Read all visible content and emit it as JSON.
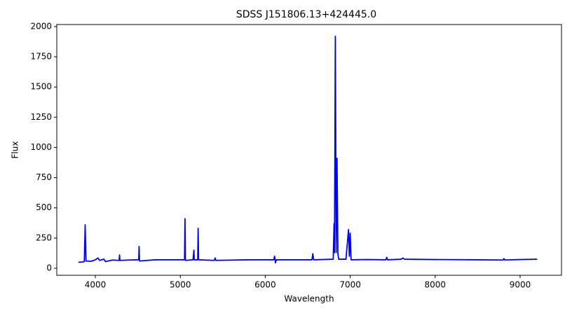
{
  "chart_data": {
    "type": "line",
    "title": "SDSS J151806.13+424445.0",
    "x_label": "Wavelength",
    "y_label": "Flux",
    "x": [
      3800,
      3850,
      3870,
      3880,
      3890,
      3950,
      4000,
      4030,
      4050,
      4100,
      4120,
      4200,
      4280,
      4285,
      4290,
      4400,
      4510,
      4515,
      4520,
      4700,
      5000,
      5050,
      5055,
      5060,
      5150,
      5160,
      5165,
      5205,
      5210,
      5215,
      5400,
      5410,
      5420,
      5800,
      6100,
      6110,
      6120,
      6130,
      6400,
      6550,
      6560,
      6570,
      6800,
      6810,
      6815,
      6825,
      6835,
      6845,
      6855,
      6865,
      6950,
      6980,
      6990,
      7000,
      7010,
      7200,
      7420,
      7430,
      7440,
      7600,
      7620,
      7640,
      8000,
      8500,
      8800,
      8810,
      8820,
      9000,
      9200
    ],
    "series": [
      {
        "name": "Flux",
        "color": "#0000ff",
        "values": [
          50,
          52,
          55,
          360,
          60,
          58,
          70,
          85,
          65,
          75,
          55,
          68,
          65,
          110,
          65,
          68,
          70,
          180,
          60,
          70,
          70,
          70,
          410,
          65,
          70,
          150,
          70,
          70,
          330,
          70,
          65,
          85,
          65,
          70,
          70,
          100,
          45,
          70,
          70,
          70,
          120,
          70,
          75,
          370,
          130,
          1920,
          130,
          910,
          120,
          75,
          75,
          320,
          100,
          290,
          70,
          72,
          70,
          90,
          70,
          75,
          85,
          75,
          72,
          70,
          68,
          80,
          68,
          72,
          75
        ]
      }
    ],
    "xlim": [
      3546,
      9487
    ],
    "ylim": [
      -58,
      2017
    ],
    "xticks": [
      4000,
      5000,
      6000,
      7000,
      8000,
      9000
    ],
    "yticks": [
      0,
      250,
      500,
      750,
      1000,
      1250,
      1500,
      1750,
      2000
    ],
    "grid": false
  }
}
